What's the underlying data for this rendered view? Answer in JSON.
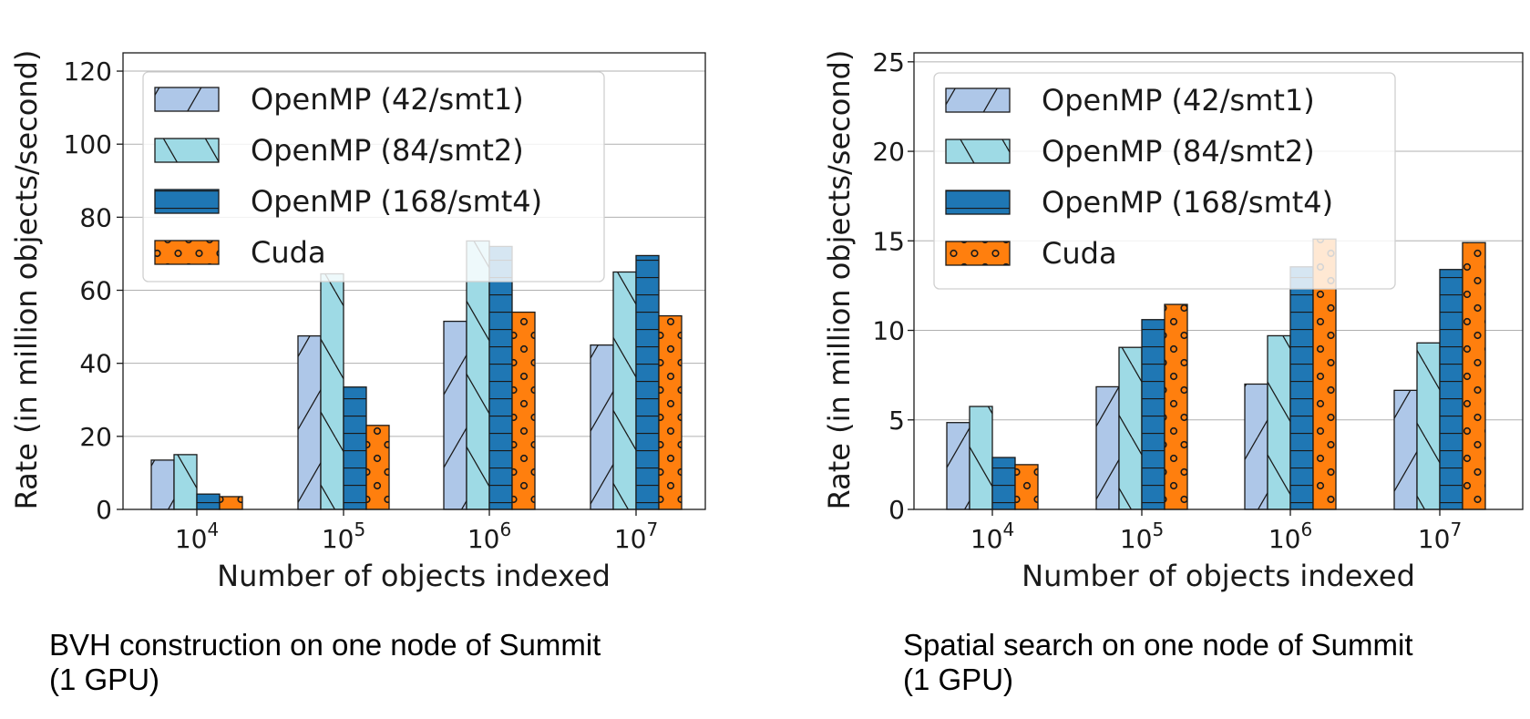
{
  "colors": {
    "openmp_smt1": "#aec7e8",
    "openmp_smt2": "#9edae5",
    "openmp_smt4": "#1f77b4",
    "cuda": "#ff7f0e",
    "grid": "#b0b0b0"
  },
  "chart_data": [
    {
      "type": "bar",
      "caption_line1": "BVH construction on one node of Summit",
      "caption_line2": "(1 GPU)",
      "xlabel": "Number of objects indexed",
      "ylabel": "Rate (in million objects/second)",
      "categories": [
        "10^4",
        "10^5",
        "10^6",
        "10^7"
      ],
      "ylim": [
        0,
        125
      ],
      "yticks": [
        0,
        20,
        40,
        60,
        80,
        100,
        120
      ],
      "grid": true,
      "legend": "top-left",
      "series": [
        {
          "name": "OpenMP (42/smt1)",
          "values": [
            13.5,
            47.5,
            51.5,
            45
          ]
        },
        {
          "name": "OpenMP (84/smt2)",
          "values": [
            15,
            64.5,
            73.5,
            65
          ]
        },
        {
          "name": "OpenMP (168/smt4)",
          "values": [
            4.2,
            33.5,
            72,
            69.5
          ]
        },
        {
          "name": "Cuda",
          "values": [
            3.5,
            23,
            54,
            53
          ]
        }
      ]
    },
    {
      "type": "bar",
      "caption_line1": "Spatial search on one node of Summit",
      "caption_line2": "(1 GPU)",
      "xlabel": "Number of objects indexed",
      "ylabel": "Rate (in million objects/second)",
      "categories": [
        "10^4",
        "10^5",
        "10^6",
        "10^7"
      ],
      "ylim": [
        0,
        25.5
      ],
      "yticks": [
        0,
        5,
        10,
        15,
        20,
        25
      ],
      "grid": true,
      "legend": "top-left",
      "series": [
        {
          "name": "OpenMP (42/smt1)",
          "values": [
            4.85,
            6.85,
            7.0,
            6.65
          ]
        },
        {
          "name": "OpenMP (84/smt2)",
          "values": [
            5.75,
            9.05,
            9.7,
            9.3
          ]
        },
        {
          "name": "OpenMP (168/smt4)",
          "values": [
            2.9,
            10.6,
            13.55,
            13.4
          ]
        },
        {
          "name": "Cuda",
          "values": [
            2.5,
            11.45,
            15.1,
            14.9
          ]
        }
      ]
    }
  ]
}
